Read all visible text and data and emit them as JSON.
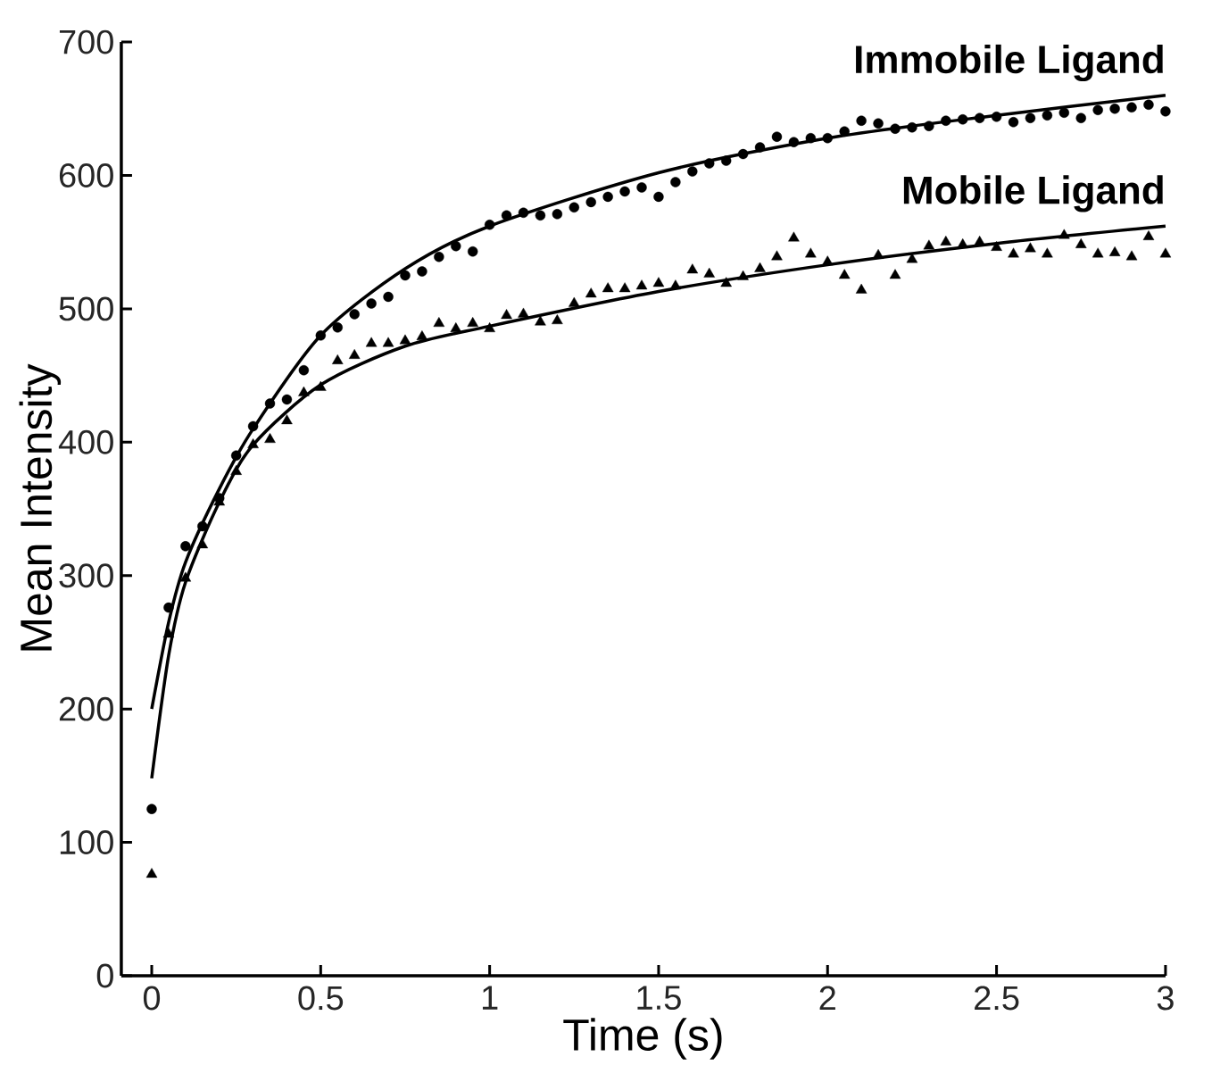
{
  "chart_data": {
    "type": "scatter",
    "xlabel": "Time (s)",
    "ylabel": "Mean Intensity",
    "xlim": [
      -0.09,
      3
    ],
    "ylim": [
      0,
      700
    ],
    "xticks": [
      0,
      0.5,
      1,
      1.5,
      2,
      2.5,
      3
    ],
    "yticks": [
      0,
      100,
      200,
      300,
      400,
      500,
      600,
      700
    ],
    "grid": false,
    "legend": false,
    "series": [
      {
        "name": "Immobile Ligand",
        "marker": "circle",
        "color": "#000000",
        "x": [
          0,
          0.05,
          0.1,
          0.15,
          0.2,
          0.25,
          0.3,
          0.35,
          0.4,
          0.45,
          0.5,
          0.55,
          0.6,
          0.65,
          0.7,
          0.75,
          0.8,
          0.85,
          0.9,
          0.95,
          1,
          1.05,
          1.1,
          1.15,
          1.2,
          1.25,
          1.3,
          1.35,
          1.4,
          1.45,
          1.5,
          1.55,
          1.6,
          1.65,
          1.7,
          1.75,
          1.8,
          1.85,
          1.9,
          1.95,
          2,
          2.05,
          2.1,
          2.15,
          2.2,
          2.25,
          2.3,
          2.35,
          2.4,
          2.45,
          2.5,
          2.55,
          2.6,
          2.65,
          2.7,
          2.75,
          2.8,
          2.85,
          2.9,
          2.95,
          3
        ],
        "values": [
          125,
          276,
          322,
          337,
          358,
          390,
          412,
          429,
          432,
          454,
          480,
          486,
          496,
          504,
          509,
          525,
          528,
          539,
          547,
          543,
          563,
          570,
          572,
          570,
          571,
          576,
          580,
          584,
          588,
          591,
          584,
          595,
          603,
          609,
          611,
          616,
          621,
          629,
          625,
          628,
          628,
          633,
          641,
          639,
          635,
          636,
          637,
          641,
          642,
          643,
          644,
          640,
          643,
          645,
          647,
          643,
          649,
          650,
          651,
          653,
          648
        ]
      },
      {
        "name": "Mobile Ligand",
        "marker": "triangle",
        "color": "#000000",
        "x": [
          0,
          0.05,
          0.1,
          0.15,
          0.2,
          0.25,
          0.3,
          0.35,
          0.4,
          0.45,
          0.5,
          0.55,
          0.6,
          0.65,
          0.7,
          0.75,
          0.8,
          0.85,
          0.9,
          0.95,
          1,
          1.05,
          1.1,
          1.15,
          1.2,
          1.25,
          1.3,
          1.35,
          1.4,
          1.45,
          1.5,
          1.55,
          1.6,
          1.65,
          1.7,
          1.75,
          1.8,
          1.85,
          1.9,
          1.95,
          2,
          2.05,
          2.1,
          2.15,
          2.2,
          2.25,
          2.3,
          2.35,
          2.4,
          2.45,
          2.5,
          2.55,
          2.6,
          2.65,
          2.7,
          2.75,
          2.8,
          2.85,
          2.9,
          2.95,
          3
        ],
        "values": [
          76,
          256,
          298,
          323,
          355,
          378,
          398,
          402,
          416,
          437,
          441,
          461,
          465,
          474,
          474,
          476,
          479,
          489,
          485,
          489,
          485,
          495,
          496,
          490,
          491,
          504,
          511,
          515,
          515,
          517,
          519,
          517,
          529,
          526,
          519,
          524,
          530,
          539,
          553,
          541,
          535,
          525,
          514,
          540,
          525,
          537,
          547,
          550,
          548,
          550,
          546,
          541,
          545,
          541,
          555,
          548,
          541,
          542,
          539,
          554,
          541
        ]
      },
      {
        "type": "line",
        "marker": "none",
        "line_style": "solid",
        "color": "#000000",
        "x": [
          0,
          0.05,
          0.1,
          0.2,
          0.3,
          0.5,
          0.75,
          1,
          1.5,
          2,
          2.5,
          3
        ],
        "values": [
          200,
          265,
          310,
          365,
          410,
          480,
          530,
          562,
          602,
          628,
          645,
          660
        ]
      },
      {
        "type": "line",
        "marker": "none",
        "line_style": "solid",
        "color": "#000000",
        "x": [
          0,
          0.05,
          0.1,
          0.2,
          0.3,
          0.5,
          0.75,
          1,
          1.5,
          2,
          2.5,
          3
        ],
        "values": [
          148,
          240,
          295,
          355,
          398,
          443,
          472,
          487,
          513,
          533,
          549,
          562
        ]
      }
    ]
  }
}
